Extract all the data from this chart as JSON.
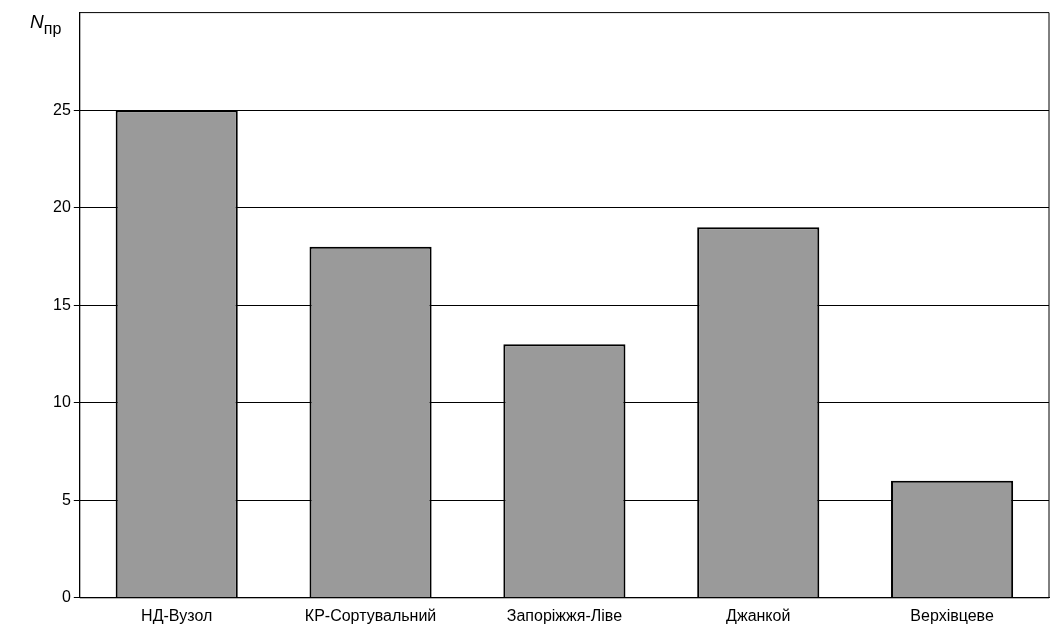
{
  "chart_data": {
    "type": "bar",
    "ylabel": "N$_{пр}$",
    "categories": [
      "НД-Вузол",
      "КР-Сортувальний",
      "Запоріжжя-Ліве",
      "Джанкой",
      "Верхівцеве"
    ],
    "values": [
      25,
      18,
      13,
      19,
      6
    ],
    "color": "#9a9a9a",
    "ylim": [
      0,
      30
    ],
    "yticks": [
      0,
      5,
      10,
      15,
      20,
      25
    ],
    "grid": "y",
    "legend": false
  }
}
